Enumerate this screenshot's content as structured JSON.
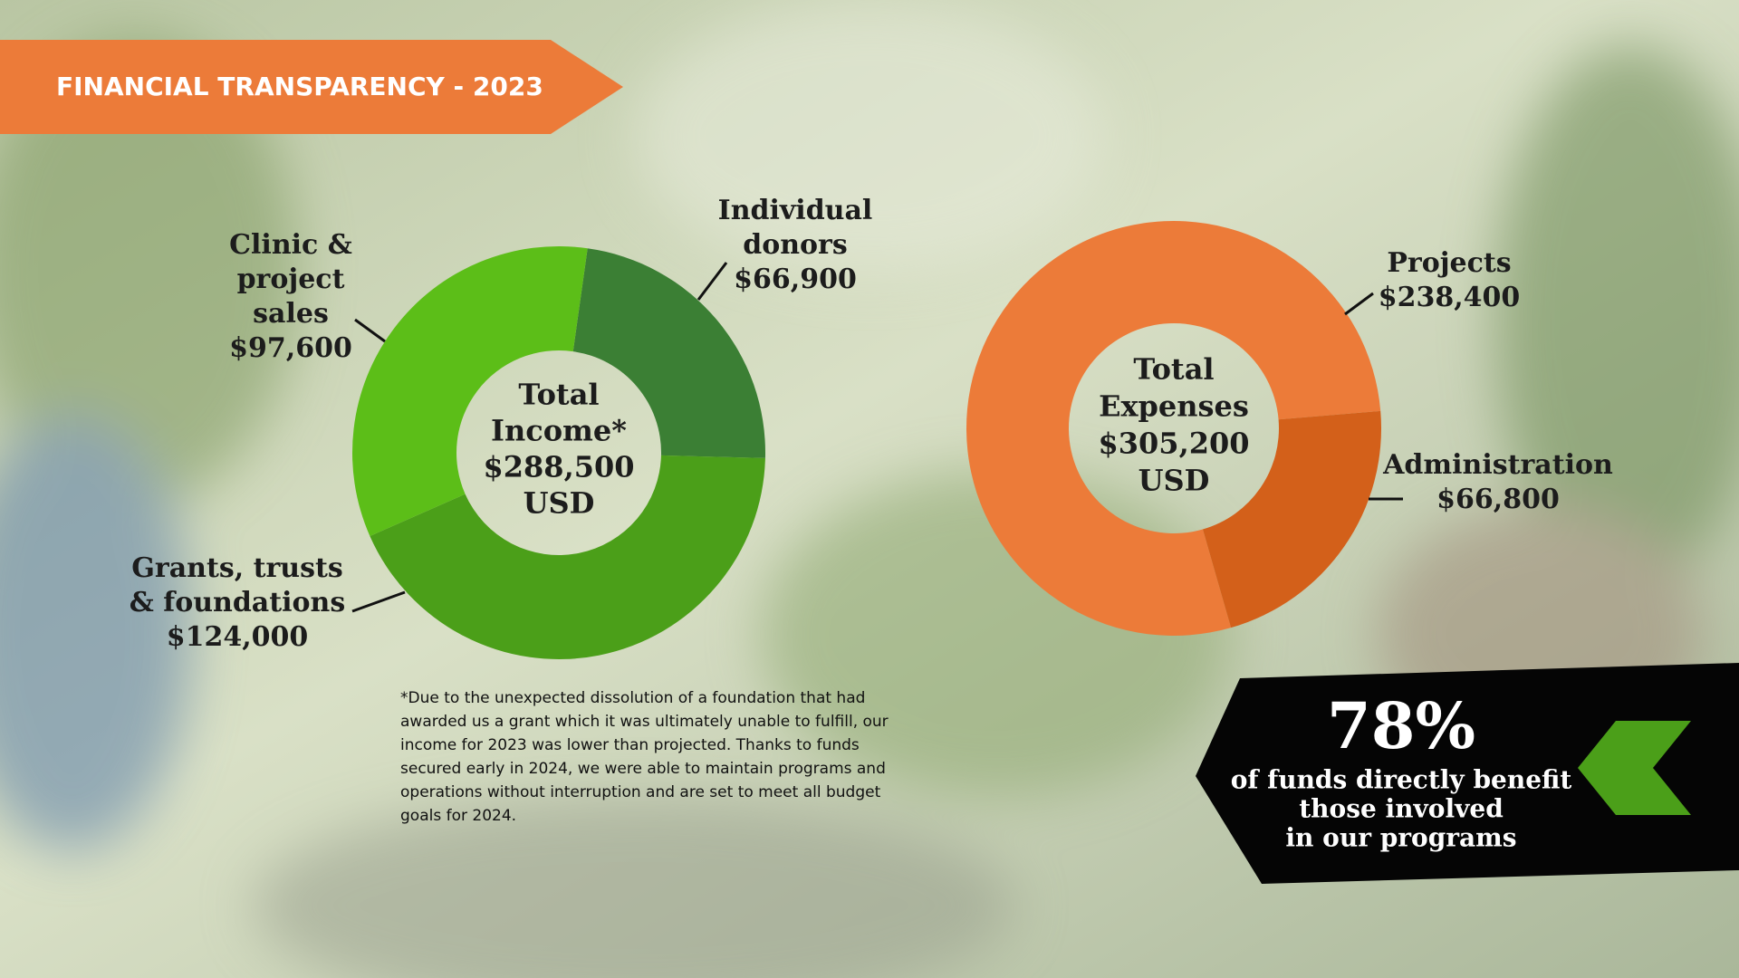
{
  "banner": "FINANCIAL TRANSPARENCY - 2023",
  "chart_data": [
    {
      "type": "donut",
      "center_lines": [
        "Total",
        "Income*",
        "$288,500",
        "USD"
      ],
      "categories": [
        "Individual donors",
        "Grants, trusts & foundations",
        "Clinic & project sales"
      ],
      "values": [
        66900,
        124000,
        97600
      ],
      "value_labels": [
        "$66,900",
        "$124,000",
        "$97,600"
      ],
      "colors": [
        "#3b7f34",
        "#4b9f19",
        "#5cbe18"
      ]
    },
    {
      "type": "donut",
      "center_lines": [
        "Total",
        "Expenses",
        "$305,200",
        "USD"
      ],
      "categories": [
        "Projects",
        "Administration"
      ],
      "values": [
        238400,
        66800
      ],
      "value_labels": [
        "$238,400",
        "$66,800"
      ],
      "colors": [
        "#ec7b39",
        "#d3601a"
      ]
    }
  ],
  "footnote": "*Due to the unexpected dissolution of a foundation that had awarded us a grant which it was ultimately unable to fulfill, our income for 2023 was lower than projected. Thanks to funds secured early in 2024, we were able to maintain programs and operations without interruption and are set to meet all budget goals for 2024.",
  "callout": {
    "figure": "78%",
    "lines": [
      "of funds directly benefit",
      "those involved",
      "in our programs"
    ]
  }
}
